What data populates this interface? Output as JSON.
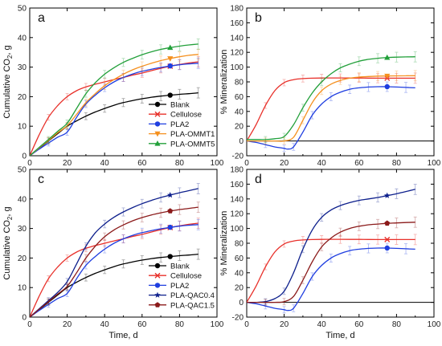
{
  "chart_data": [
    {
      "type": "line",
      "panel_label": "a",
      "ylabel_main": "Cumulative CO",
      "ylabel_sub": "2",
      "ylabel_unit": ", g",
      "xlabel": "",
      "xlim": [
        0,
        100
      ],
      "ylim": [
        0,
        50
      ],
      "xticks": [
        0,
        20,
        40,
        60,
        80,
        100
      ],
      "yticks": [
        0,
        10,
        20,
        30,
        40,
        50
      ],
      "legend": "bottom-right",
      "series": [
        {
          "name": "Blank",
          "color": "#000000",
          "marker": "circle",
          "x": [
            0,
            5,
            10,
            15,
            20,
            25,
            30,
            35,
            40,
            45,
            50,
            55,
            60,
            65,
            70,
            75,
            80,
            85,
            90
          ],
          "y": [
            0,
            2.5,
            5,
            7.5,
            10,
            11.8,
            13.4,
            14.8,
            16,
            17.1,
            18,
            18.7,
            19.3,
            19.8,
            20.2,
            20.5,
            20.8,
            21,
            21.3
          ]
        },
        {
          "name": "Cellulose",
          "color": "#e8302a",
          "marker": "x",
          "x": [
            0,
            5,
            10,
            15,
            20,
            25,
            30,
            35,
            40,
            45,
            50,
            55,
            60,
            65,
            70,
            75,
            80,
            85,
            90
          ],
          "y": [
            0,
            7,
            13,
            17,
            20,
            22,
            23.3,
            24.2,
            25,
            25.8,
            26.5,
            27.3,
            28,
            28.8,
            29.6,
            30.3,
            30.9,
            31.4,
            31.8
          ]
        },
        {
          "name": "PLA2",
          "color": "#1f3ee0",
          "marker": "circle",
          "x": [
            0,
            5,
            10,
            15,
            20,
            25,
            30,
            35,
            40,
            45,
            50,
            55,
            60,
            65,
            70,
            75,
            80,
            85,
            90
          ],
          "y": [
            0,
            2.2,
            4.3,
            6.3,
            8,
            13,
            17.5,
            20.5,
            23,
            25,
            26.5,
            27.7,
            28.6,
            29.3,
            29.9,
            30.4,
            30.8,
            31.1,
            31.3
          ]
        },
        {
          "name": "PLA-OMMT1",
          "color": "#f5901e",
          "marker": "triangle-down",
          "x": [
            0,
            5,
            10,
            15,
            20,
            25,
            30,
            35,
            40,
            45,
            50,
            55,
            60,
            65,
            70,
            75,
            80,
            85,
            90
          ],
          "y": [
            0,
            2.6,
            5.2,
            7.8,
            10.2,
            14,
            18,
            21,
            23.7,
            25.8,
            27.6,
            29.1,
            30.3,
            31.3,
            32.2,
            32.9,
            33.5,
            34,
            34.3
          ]
        },
        {
          "name": "PLA-OMMT5",
          "color": "#22a03a",
          "marker": "triangle",
          "x": [
            0,
            5,
            10,
            15,
            20,
            25,
            30,
            35,
            40,
            45,
            50,
            55,
            60,
            65,
            70,
            75,
            80,
            85,
            90
          ],
          "y": [
            0,
            2.8,
            5.5,
            8.3,
            11,
            16,
            21,
            24.7,
            27.6,
            29.8,
            31.6,
            33,
            34.2,
            35.2,
            36,
            36.6,
            37.1,
            37.5,
            37.8
          ]
        }
      ]
    },
    {
      "type": "line",
      "panel_label": "b",
      "ylabel": "% Mineralization",
      "xlabel": "",
      "xlim": [
        0,
        100
      ],
      "ylim": [
        -20,
        180
      ],
      "xticks": [
        0,
        20,
        40,
        60,
        80,
        100
      ],
      "yticks": [
        -20,
        0,
        20,
        40,
        60,
        80,
        100,
        120,
        140,
        160,
        180
      ],
      "reference_line_y": 0,
      "series": [
        {
          "name": "Cellulose",
          "color": "#e8302a",
          "marker": "x",
          "x": [
            0,
            5,
            10,
            15,
            20,
            25,
            30,
            35,
            40,
            45,
            50,
            55,
            60,
            65,
            70,
            75,
            80,
            85,
            90
          ],
          "y": [
            0,
            22,
            48,
            68,
            79,
            83,
            84.5,
            85,
            85.2,
            85.3,
            85.3,
            85.2,
            85.2,
            85.1,
            85,
            85,
            85,
            85,
            85
          ]
        },
        {
          "name": "PLA2",
          "color": "#1f3ee0",
          "marker": "circle",
          "x": [
            0,
            5,
            10,
            15,
            20,
            22,
            25,
            30,
            35,
            40,
            45,
            50,
            55,
            60,
            65,
            70,
            75,
            80,
            85,
            90
          ],
          "y": [
            0,
            -2,
            -5,
            -8,
            -10,
            -11,
            -8,
            12,
            35,
            50,
            60,
            66,
            70,
            72,
            73,
            73.5,
            73.5,
            73,
            72.5,
            72
          ]
        },
        {
          "name": "PLA-OMMT1",
          "color": "#f5901e",
          "marker": "triangle-down",
          "x": [
            0,
            5,
            10,
            15,
            20,
            25,
            30,
            35,
            40,
            45,
            50,
            55,
            60,
            65,
            70,
            75,
            80,
            85,
            90
          ],
          "y": [
            0,
            0,
            0,
            0,
            0,
            5,
            28,
            52,
            68,
            77,
            82,
            85,
            86.5,
            87.3,
            87.8,
            88,
            88.2,
            88.3,
            88.4
          ]
        },
        {
          "name": "PLA-OMMT5",
          "color": "#22a03a",
          "marker": "triangle",
          "x": [
            0,
            5,
            10,
            15,
            20,
            25,
            30,
            35,
            40,
            45,
            50,
            55,
            60,
            65,
            70,
            75,
            80,
            85,
            90
          ],
          "y": [
            2,
            2,
            2,
            3,
            6,
            22,
            45,
            65,
            80,
            91,
            99,
            104,
            108,
            110.5,
            112,
            113,
            113.5,
            113.8,
            114
          ]
        }
      ]
    },
    {
      "type": "line",
      "panel_label": "c",
      "ylabel_main": "Cumulative CO",
      "ylabel_sub": "2",
      "ylabel_unit": ", g",
      "xlabel": "Time, d",
      "xlim": [
        0,
        100
      ],
      "ylim": [
        0,
        50
      ],
      "xticks": [
        0,
        20,
        40,
        60,
        80,
        100
      ],
      "yticks": [
        0,
        10,
        20,
        30,
        40,
        50
      ],
      "legend": "bottom-right",
      "series": [
        {
          "name": "Blank",
          "color": "#000000",
          "marker": "circle",
          "x": [
            0,
            5,
            10,
            15,
            20,
            25,
            30,
            35,
            40,
            45,
            50,
            55,
            60,
            65,
            70,
            75,
            80,
            85,
            90
          ],
          "y": [
            0,
            2.5,
            5,
            7.5,
            10,
            11.8,
            13.4,
            14.8,
            16,
            17.1,
            18,
            18.7,
            19.3,
            19.8,
            20.2,
            20.5,
            20.8,
            21,
            21.3
          ]
        },
        {
          "name": "Cellulose",
          "color": "#e8302a",
          "marker": "x",
          "x": [
            0,
            5,
            10,
            15,
            20,
            25,
            30,
            35,
            40,
            45,
            50,
            55,
            60,
            65,
            70,
            75,
            80,
            85,
            90
          ],
          "y": [
            0,
            7,
            13,
            17,
            20,
            22,
            23.3,
            24.2,
            25,
            25.8,
            26.5,
            27.3,
            28,
            28.8,
            29.6,
            30.3,
            30.9,
            31.4,
            31.8
          ]
        },
        {
          "name": "PLA2",
          "color": "#1f3ee0",
          "marker": "circle",
          "x": [
            0,
            5,
            10,
            15,
            20,
            25,
            30,
            35,
            40,
            45,
            50,
            55,
            60,
            65,
            70,
            75,
            80,
            85,
            90
          ],
          "y": [
            0,
            2.2,
            4.3,
            6.3,
            8,
            13,
            17.5,
            20.5,
            23,
            25,
            26.5,
            27.7,
            28.6,
            29.3,
            29.9,
            30.4,
            30.8,
            31.1,
            31.3
          ]
        },
        {
          "name": "PLA-QAC0.4",
          "color": "#0d1f8c",
          "marker": "star",
          "x": [
            0,
            5,
            10,
            15,
            20,
            25,
            30,
            35,
            40,
            45,
            50,
            55,
            60,
            65,
            70,
            75,
            80,
            85,
            90
          ],
          "y": [
            0,
            2.8,
            5.6,
            8.4,
            12,
            18,
            24,
            28.5,
            31.5,
            33.8,
            35.6,
            37.1,
            38.4,
            39.5,
            40.5,
            41.3,
            42.1,
            42.8,
            43.5
          ]
        },
        {
          "name": "PLA-QAC1.5",
          "color": "#8b1a1a",
          "marker": "pentagon",
          "x": [
            0,
            5,
            10,
            15,
            20,
            25,
            30,
            35,
            40,
            45,
            50,
            55,
            60,
            65,
            70,
            75,
            80,
            85,
            90
          ],
          "y": [
            0,
            2.6,
            5.2,
            7.8,
            10.4,
            15,
            20,
            24,
            27.2,
            29.5,
            31.2,
            32.6,
            33.7,
            34.6,
            35.3,
            35.9,
            36.4,
            36.8,
            37.2
          ]
        }
      ]
    },
    {
      "type": "line",
      "panel_label": "d",
      "ylabel": "% Mineralization",
      "xlabel": "Time, d",
      "xlim": [
        0,
        100
      ],
      "ylim": [
        -20,
        180
      ],
      "xticks": [
        0,
        20,
        40,
        60,
        80,
        100
      ],
      "yticks": [
        -20,
        0,
        20,
        40,
        60,
        80,
        100,
        120,
        140,
        160,
        180
      ],
      "reference_line_y": 0,
      "series": [
        {
          "name": "Cellulose",
          "color": "#e8302a",
          "marker": "x",
          "x": [
            0,
            5,
            10,
            15,
            20,
            25,
            30,
            35,
            40,
            45,
            50,
            55,
            60,
            65,
            70,
            75,
            80,
            85,
            90
          ],
          "y": [
            0,
            22,
            48,
            68,
            79,
            83,
            84.5,
            85,
            85.2,
            85.3,
            85.3,
            85.2,
            85.2,
            85.1,
            85,
            85,
            85,
            85,
            85
          ]
        },
        {
          "name": "PLA2",
          "color": "#1f3ee0",
          "marker": "circle",
          "x": [
            0,
            5,
            10,
            15,
            20,
            22,
            25,
            30,
            35,
            40,
            45,
            50,
            55,
            60,
            65,
            70,
            75,
            80,
            85,
            90
          ],
          "y": [
            0,
            -2,
            -5,
            -8,
            -10,
            -11,
            -8,
            12,
            35,
            50,
            60,
            66,
            70,
            72,
            73,
            73.5,
            73.5,
            73,
            72.5,
            72
          ]
        },
        {
          "name": "PLA-QAC0.4",
          "color": "#0d1f8c",
          "marker": "star",
          "x": [
            0,
            5,
            10,
            15,
            20,
            25,
            30,
            35,
            40,
            45,
            50,
            55,
            60,
            65,
            70,
            75,
            80,
            85,
            90
          ],
          "y": [
            0,
            0,
            1,
            5,
            15,
            40,
            72,
            98,
            115,
            125,
            131,
            135,
            138,
            140,
            142,
            144.5,
            147,
            150,
            153
          ]
        },
        {
          "name": "PLA-QAC1.5",
          "color": "#8b1a1a",
          "marker": "pentagon",
          "x": [
            0,
            5,
            10,
            15,
            20,
            25,
            30,
            35,
            40,
            45,
            50,
            55,
            60,
            65,
            70,
            75,
            80,
            85,
            90
          ],
          "y": [
            0,
            0,
            0,
            0,
            1,
            8,
            30,
            55,
            75,
            87,
            95,
            100,
            103,
            105,
            106,
            107,
            107.5,
            108,
            108.5
          ]
        }
      ]
    }
  ]
}
